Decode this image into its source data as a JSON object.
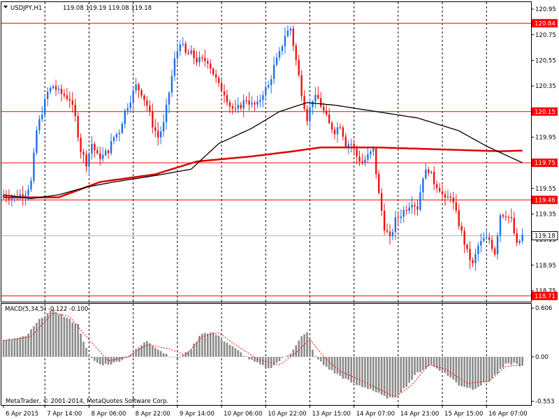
{
  "chart_data": {
    "type": "candlestick",
    "symbol_timeframe": "USDJPY,H1",
    "ohlc_header": "119.08 119.19 119.08 119.18",
    "price_axis": {
      "ylim": [
        118.665,
        121.005
      ],
      "ticks": [
        "120.95",
        "120.75",
        "120.55",
        "120.35",
        "120.15",
        "119.95",
        "119.75",
        "119.55",
        "119.35",
        "119.15",
        "118.95",
        "118.75"
      ],
      "current_price": "119.18"
    },
    "time_axis": {
      "labels": [
        "6 Apr 2015",
        "7 Apr 14:00",
        "8 Apr 06:00",
        "8 Apr 22:00",
        "9 Apr 14:00",
        "10 Apr 06:00",
        "10 Apr 22:00",
        "13 Apr 15:00",
        "14 Apr 07:00",
        "14 Apr 23:00",
        "15 Apr 15:00",
        "16 Apr 07:00"
      ],
      "label_bars": [
        0,
        15,
        31,
        47,
        63,
        79,
        95,
        111,
        127,
        143,
        159,
        175
      ]
    },
    "horizontal_levels": [
      {
        "value": 120.84,
        "label": "120.84",
        "color": "#ff0000"
      },
      {
        "value": 120.15,
        "label": "120.15",
        "color": "#ff0000"
      },
      {
        "value": 119.75,
        "label": "119.75",
        "color": "#ff0000"
      },
      {
        "value": 119.46,
        "label": "119.46",
        "color": "#ff0000"
      },
      {
        "value": 118.71,
        "label": "118.71",
        "color": "#ff0000"
      }
    ],
    "candle_close_anchors": [
      [
        0,
        119.5
      ],
      [
        4,
        119.48
      ],
      [
        8,
        119.52
      ],
      [
        10,
        119.6
      ],
      [
        12,
        120.0
      ],
      [
        14,
        120.15
      ],
      [
        16,
        120.3
      ],
      [
        18,
        120.35
      ],
      [
        20,
        120.3
      ],
      [
        22,
        120.28
      ],
      [
        24,
        120.25
      ],
      [
        26,
        120.1
      ],
      [
        28,
        119.85
      ],
      [
        30,
        119.75
      ],
      [
        32,
        119.9
      ],
      [
        34,
        119.8
      ],
      [
        36,
        119.8
      ],
      [
        38,
        119.85
      ],
      [
        40,
        119.95
      ],
      [
        42,
        120.0
      ],
      [
        44,
        120.15
      ],
      [
        46,
        120.25
      ],
      [
        48,
        120.35
      ],
      [
        50,
        120.3
      ],
      [
        52,
        120.2
      ],
      [
        54,
        120.05
      ],
      [
        56,
        119.95
      ],
      [
        58,
        120.05
      ],
      [
        60,
        120.3
      ],
      [
        62,
        120.55
      ],
      [
        64,
        120.7
      ],
      [
        66,
        120.6
      ],
      [
        68,
        120.6
      ],
      [
        70,
        120.55
      ],
      [
        72,
        120.55
      ],
      [
        74,
        120.55
      ],
      [
        76,
        120.45
      ],
      [
        78,
        120.35
      ],
      [
        80,
        120.3
      ],
      [
        82,
        120.2
      ],
      [
        84,
        120.15
      ],
      [
        86,
        120.2
      ],
      [
        88,
        120.25
      ],
      [
        90,
        120.2
      ],
      [
        92,
        120.2
      ],
      [
        94,
        120.3
      ],
      [
        96,
        120.35
      ],
      [
        98,
        120.5
      ],
      [
        100,
        120.6
      ],
      [
        102,
        120.75
      ],
      [
        104,
        120.8
      ],
      [
        106,
        120.55
      ],
      [
        108,
        120.3
      ],
      [
        110,
        120.1
      ],
      [
        112,
        120.25
      ],
      [
        114,
        120.25
      ],
      [
        116,
        120.15
      ],
      [
        118,
        120.05
      ],
      [
        120,
        120.0
      ],
      [
        122,
        120.05
      ],
      [
        124,
        119.9
      ],
      [
        126,
        119.9
      ],
      [
        128,
        119.8
      ],
      [
        130,
        119.75
      ],
      [
        132,
        119.8
      ],
      [
        134,
        119.85
      ],
      [
        136,
        119.5
      ],
      [
        138,
        119.25
      ],
      [
        140,
        119.15
      ],
      [
        142,
        119.3
      ],
      [
        144,
        119.35
      ],
      [
        146,
        119.4
      ],
      [
        148,
        119.45
      ],
      [
        150,
        119.4
      ],
      [
        152,
        119.65
      ],
      [
        154,
        119.7
      ],
      [
        156,
        119.6
      ],
      [
        158,
        119.55
      ],
      [
        160,
        119.45
      ],
      [
        162,
        119.5
      ],
      [
        164,
        119.35
      ],
      [
        166,
        119.2
      ],
      [
        168,
        119.05
      ],
      [
        170,
        118.95
      ],
      [
        172,
        119.1
      ],
      [
        174,
        119.15
      ],
      [
        176,
        119.15
      ],
      [
        178,
        119.05
      ],
      [
        180,
        119.35
      ],
      [
        182,
        119.35
      ],
      [
        184,
        119.3
      ],
      [
        186,
        119.1
      ],
      [
        188,
        119.18
      ]
    ],
    "moving_averages": [
      {
        "color": "#e00000",
        "points": [
          [
            0,
            119.48
          ],
          [
            20,
            119.48
          ],
          [
            35,
            119.6
          ],
          [
            55,
            119.66
          ],
          [
            70,
            119.76
          ],
          [
            90,
            119.8
          ],
          [
            105,
            119.84
          ],
          [
            115,
            119.87
          ],
          [
            135,
            119.87
          ],
          [
            150,
            119.86
          ],
          [
            165,
            119.85
          ],
          [
            180,
            119.84
          ],
          [
            188,
            119.845
          ]
        ]
      },
      {
        "color": "#000000",
        "points": [
          [
            0,
            119.5
          ],
          [
            10,
            119.47
          ],
          [
            20,
            119.5
          ],
          [
            30,
            119.56
          ],
          [
            40,
            119.6
          ],
          [
            55,
            119.65
          ],
          [
            68,
            119.7
          ],
          [
            78,
            119.9
          ],
          [
            90,
            120.02
          ],
          [
            100,
            120.15
          ],
          [
            110,
            120.22
          ],
          [
            120,
            120.2
          ],
          [
            135,
            120.15
          ],
          [
            150,
            120.1
          ],
          [
            165,
            120.0
          ],
          [
            175,
            119.88
          ],
          [
            188,
            119.75
          ]
        ]
      }
    ],
    "macd": {
      "label": "MACD(5,34,5) -0.122 -0.100",
      "ylim": [
        -0.6,
        0.66
      ],
      "ticks": [
        "0.606",
        "0.00",
        "-0.553"
      ],
      "histogram_anchors": [
        [
          0,
          0.2
        ],
        [
          8,
          0.25
        ],
        [
          14,
          0.5
        ],
        [
          18,
          0.58
        ],
        [
          22,
          0.5
        ],
        [
          27,
          0.4
        ],
        [
          31,
          0.0
        ],
        [
          35,
          -0.1
        ],
        [
          40,
          -0.08
        ],
        [
          45,
          0.0
        ],
        [
          52,
          0.2
        ],
        [
          58,
          0.05
        ],
        [
          63,
          -0.03
        ],
        [
          68,
          0.1
        ],
        [
          72,
          0.3
        ],
        [
          76,
          0.3
        ],
        [
          80,
          0.2
        ],
        [
          84,
          0.1
        ],
        [
          90,
          -0.05
        ],
        [
          96,
          -0.15
        ],
        [
          100,
          -0.05
        ],
        [
          104,
          0.05
        ],
        [
          108,
          0.25
        ],
        [
          110,
          0.3
        ],
        [
          113,
          0.0
        ],
        [
          116,
          -0.1
        ],
        [
          120,
          -0.2
        ],
        [
          125,
          -0.3
        ],
        [
          128,
          -0.35
        ],
        [
          133,
          -0.4
        ],
        [
          138,
          -0.5
        ],
        [
          141,
          -0.52
        ],
        [
          145,
          -0.4
        ],
        [
          150,
          -0.2
        ],
        [
          155,
          -0.1
        ],
        [
          160,
          -0.2
        ],
        [
          165,
          -0.35
        ],
        [
          170,
          -0.4
        ],
        [
          176,
          -0.3
        ],
        [
          182,
          -0.1
        ],
        [
          185,
          -0.08
        ],
        [
          188,
          -0.12
        ]
      ],
      "signal_anchors": [
        [
          0,
          0.2
        ],
        [
          10,
          0.25
        ],
        [
          18,
          0.55
        ],
        [
          24,
          0.5
        ],
        [
          30,
          0.25
        ],
        [
          38,
          -0.05
        ],
        [
          45,
          0.0
        ],
        [
          52,
          0.15
        ],
        [
          60,
          0.1
        ],
        [
          66,
          0.02
        ],
        [
          72,
          0.25
        ],
        [
          78,
          0.3
        ],
        [
          84,
          0.15
        ],
        [
          92,
          -0.03
        ],
        [
          100,
          -0.1
        ],
        [
          106,
          0.05
        ],
        [
          111,
          0.22
        ],
        [
          116,
          0.0
        ],
        [
          122,
          -0.18
        ],
        [
          130,
          -0.3
        ],
        [
          136,
          -0.4
        ],
        [
          142,
          -0.5
        ],
        [
          148,
          -0.35
        ],
        [
          154,
          -0.1
        ],
        [
          160,
          -0.15
        ],
        [
          168,
          -0.33
        ],
        [
          176,
          -0.3
        ],
        [
          182,
          -0.12
        ],
        [
          188,
          -0.1
        ]
      ],
      "signal_color": "#ff0000"
    },
    "title": "",
    "xlabel": "",
    "ylabel": ""
  },
  "footer": {
    "copyright": "MetaTrader, © 2001-2014, MetaQuotes Software Corp."
  },
  "colors": {
    "bull": "#1e6fe6",
    "bear": "#ee1111",
    "level": "#ff0000",
    "grid": "#000000",
    "histogram": "#8a8a8a"
  }
}
